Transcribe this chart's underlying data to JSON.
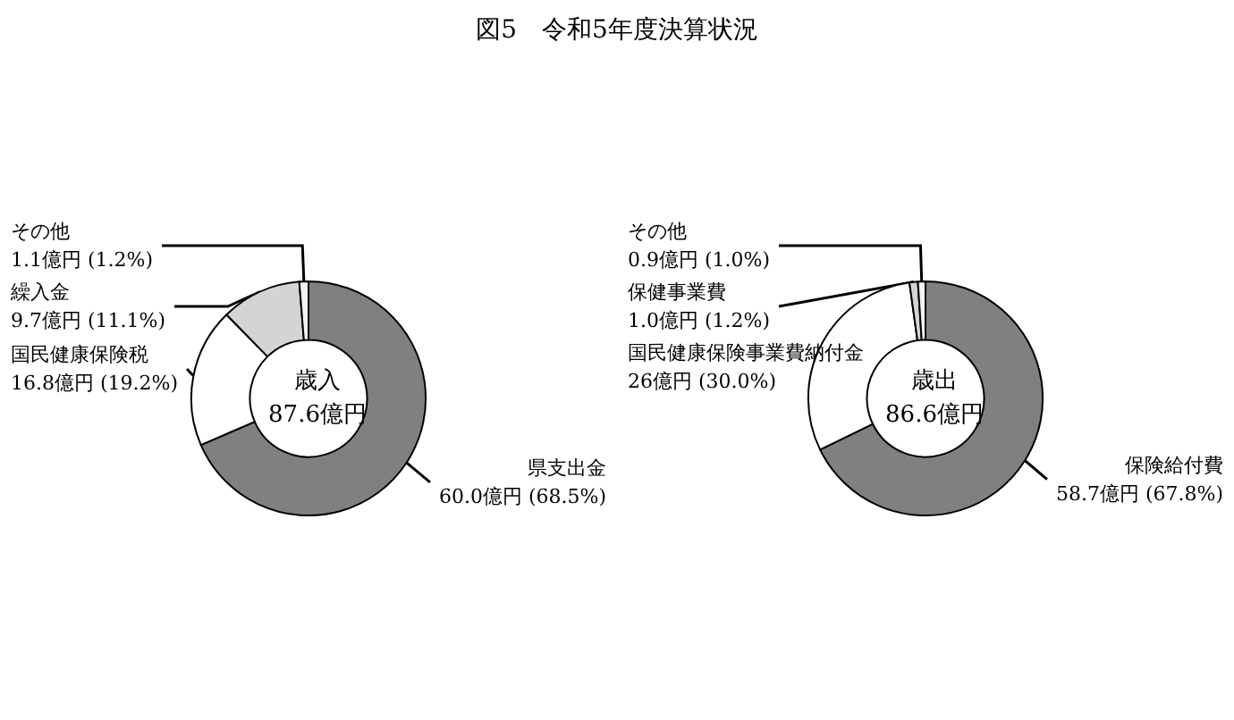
{
  "chart_data": [
    {
      "type": "donut",
      "title": "図5　令和5年度決算状況",
      "categories": [
        "県支出金",
        "国民健康保険税",
        "繰入金",
        "その他"
      ],
      "values": [
        60.0,
        16.8,
        9.7,
        1.1
      ],
      "colors": [
        "#808080",
        "#ffffff",
        "#d4d4d4",
        "#f2f2f2"
      ],
      "value_labels": [
        "60.0億円 (68.5%)",
        "16.8億円 (19.2%)",
        "9.7億円 (11.1%)",
        "1.1億円 (1.2%)"
      ],
      "annotations": [
        "歳入",
        "87.6億円"
      ]
    },
    {
      "type": "donut",
      "categories": [
        "保険給付費",
        "国民健康保険事業費納付金",
        "保健事業費",
        "その他"
      ],
      "values": [
        58.7,
        26,
        1.0,
        0.9
      ],
      "colors": [
        "#808080",
        "#ffffff",
        "#d4d4d4",
        "#f2f2f2"
      ],
      "value_labels": [
        "58.7億円 (67.8%)",
        "26億円 (30.0%)",
        "1.0億円 (1.2%)",
        "0.9億円 (1.0%)"
      ],
      "annotations": [
        "歳出",
        "86.6億円"
      ]
    }
  ]
}
